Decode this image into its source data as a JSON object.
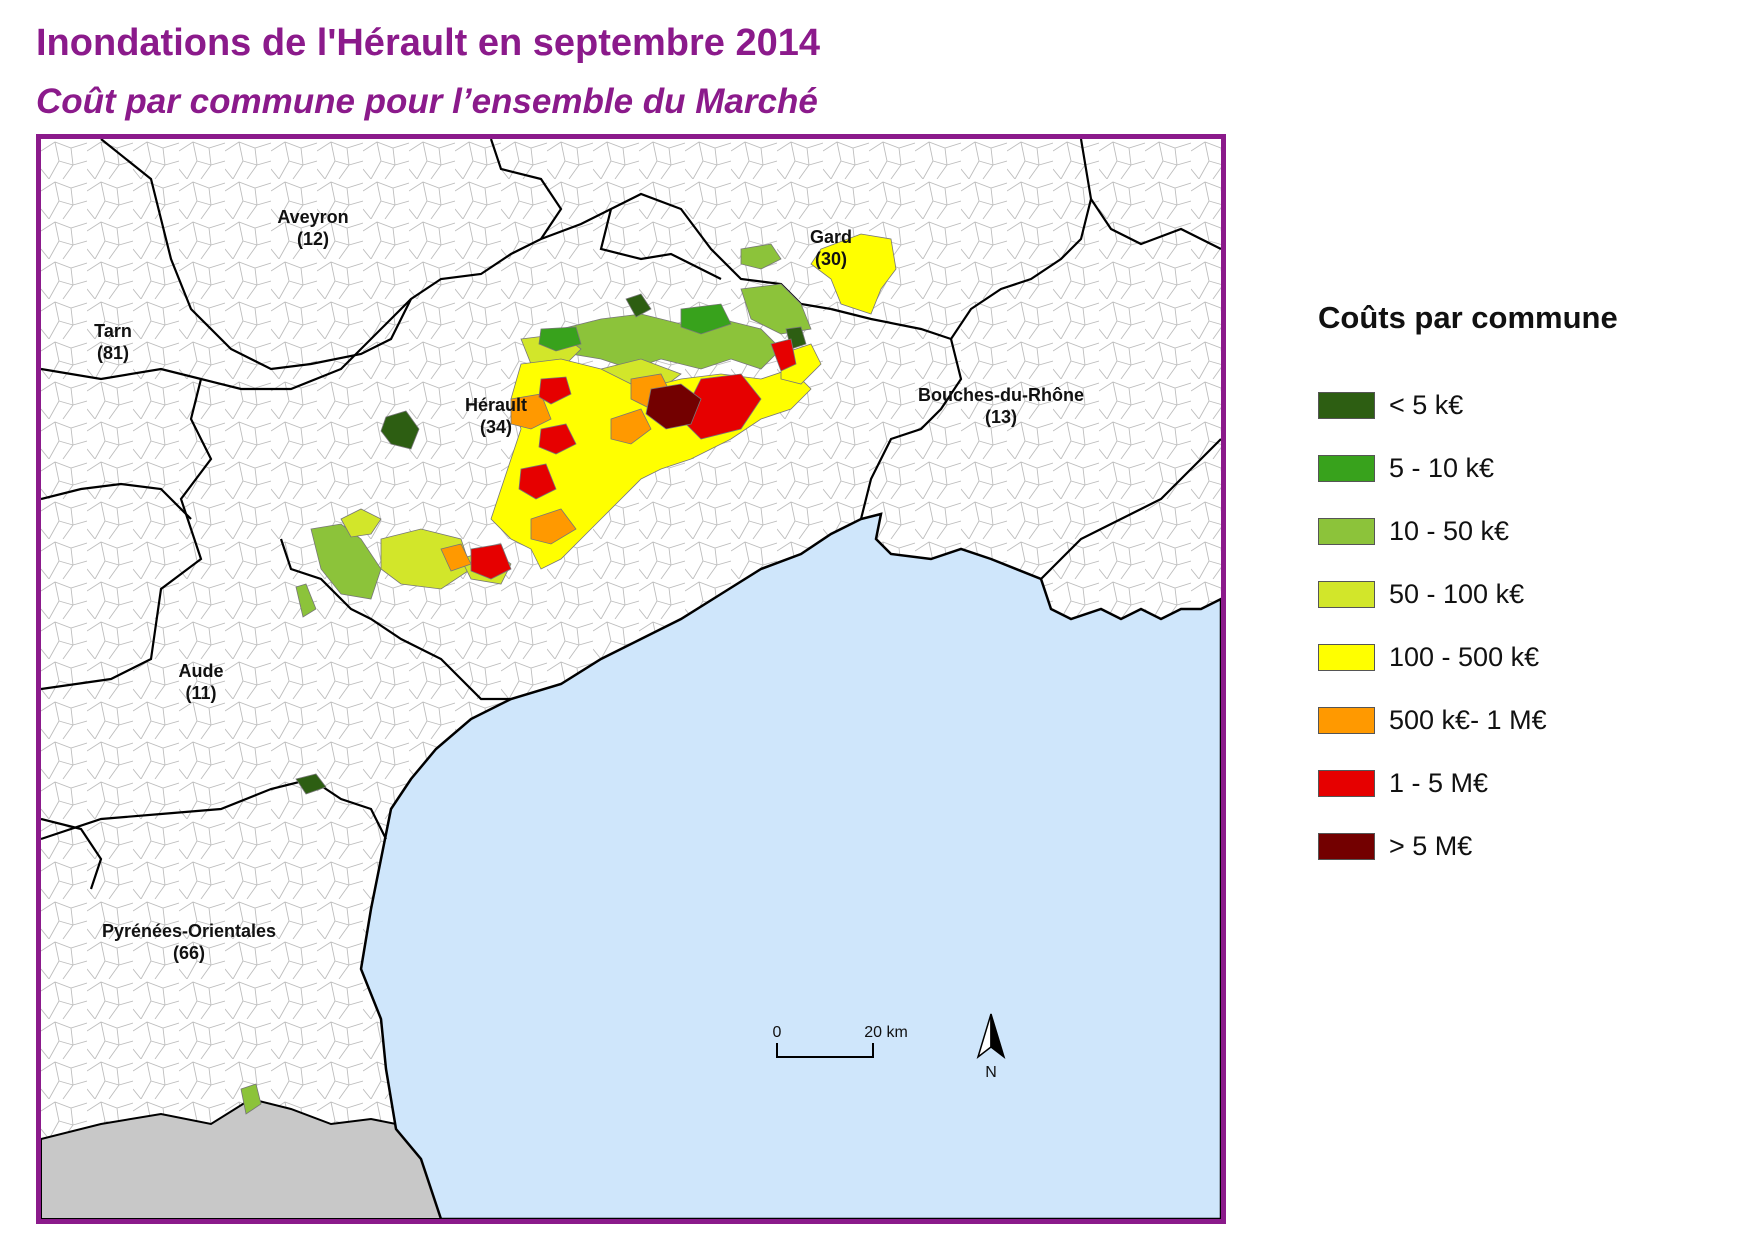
{
  "title": "Inondations de l'Hérault en septembre 2014",
  "subtitle": "Coût par commune pour l’ensemble du Marché",
  "colors": {
    "frame": "#8b1a8b",
    "sea": "#cfe6fb",
    "outside_land": "#c8c8c8",
    "land": "#ffffff",
    "commune_border": "#b8b8b8",
    "dept_border": "#000000"
  },
  "departments": [
    {
      "name": "Aveyron",
      "code": "(12)"
    },
    {
      "name": "Gard",
      "code": "(30)"
    },
    {
      "name": "Tarn",
      "code": "(81)"
    },
    {
      "name": "Hérault",
      "code": "(34)"
    },
    {
      "name": "Bouches-du-Rhône",
      "code": "(13)"
    },
    {
      "name": "Aude",
      "code": "(11)"
    },
    {
      "name": "Pyrénées-Orientales",
      "code": "(66)"
    }
  ],
  "legend": {
    "title": "Coûts par commune",
    "items": [
      {
        "label": "< 5 k€",
        "color": "#2d5e12"
      },
      {
        "label": "5 - 10 k€",
        "color": "#38a21c"
      },
      {
        "label": "10 - 50 k€",
        "color": "#8cc33a"
      },
      {
        "label": "50 - 100 k€",
        "color": "#d2e62a"
      },
      {
        "label": "100 - 500 k€",
        "color": "#ffff00"
      },
      {
        "label": "500 k€- 1 M€",
        "color": "#ff9900"
      },
      {
        "label": "1 - 5 M€",
        "color": "#e60000"
      },
      {
        "label": "> 5 M€",
        "color": "#730000"
      }
    ]
  },
  "scale_bar": {
    "start": "0",
    "end": "20 km"
  },
  "north_arrow": {
    "label": "N"
  }
}
